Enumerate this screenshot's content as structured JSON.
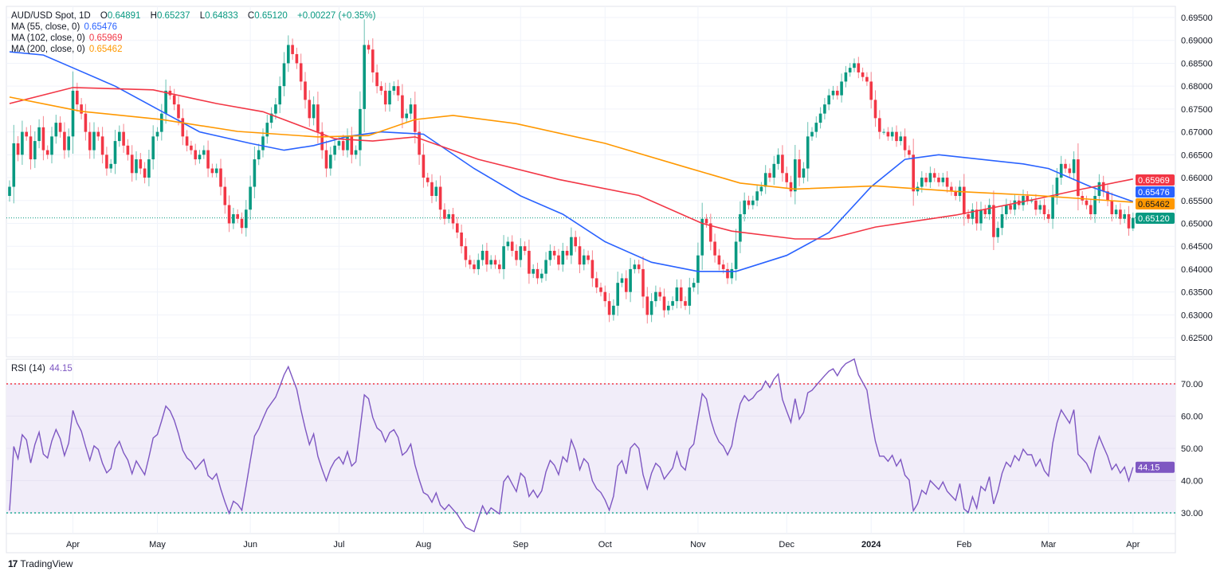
{
  "legend": {
    "symbol": "AUD/USD Spot, 1D",
    "o_label": "O",
    "o": "0.64891",
    "h_label": "H",
    "h": "0.65237",
    "l_label": "L",
    "l": "0.64833",
    "c_label": "C",
    "c": "0.65120",
    "change": "+0.00227 (+0.35%)",
    "ma55_label": "MA (55, close, 0)",
    "ma55": "0.65476",
    "ma102_label": "MA (102, close, 0)",
    "ma102": "0.65969",
    "ma200_label": "MA (200, close, 0)",
    "ma200": "0.65462",
    "rsi_label": "RSI (14)",
    "rsi": "44.15"
  },
  "colors": {
    "up": "#089981",
    "down": "#f23645",
    "ma55": "#2962ff",
    "ma102": "#f23645",
    "ma200": "#ff9800",
    "rsi": "#7e57c2",
    "rsi_band": "#f1edf9",
    "grid": "#f0f3fa",
    "text": "#131722"
  },
  "footer": {
    "brand": "TradingView"
  },
  "chart_data": [
    {
      "type": "candlestick",
      "title": "AUD/USD Spot, 1D",
      "ylim": [
        0.6225,
        0.6975
      ],
      "y_ticks": [
        "0.69500",
        "0.69000",
        "0.68500",
        "0.68000",
        "0.67500",
        "0.67000",
        "0.66500",
        "0.66000",
        "0.65500",
        "0.65000",
        "0.64500",
        "0.64000",
        "0.63500",
        "0.63000",
        "0.62500"
      ],
      "x_ticks": [
        {
          "label": "Apr",
          "bar": 15
        },
        {
          "label": "May",
          "bar": 35
        },
        {
          "label": "Jun",
          "bar": 57
        },
        {
          "label": "Jul",
          "bar": 78
        },
        {
          "label": "Aug",
          "bar": 98
        },
        {
          "label": "Sep",
          "bar": 121
        },
        {
          "label": "Oct",
          "bar": 141
        },
        {
          "label": "Nov",
          "bar": 163
        },
        {
          "label": "Dec",
          "bar": 184
        },
        {
          "label": "2024",
          "bar": 204,
          "bold": true
        },
        {
          "label": "Feb",
          "bar": 226
        },
        {
          "label": "Mar",
          "bar": 246
        },
        {
          "label": "Apr",
          "bar": 266
        }
      ],
      "last": {
        "open": 0.64891,
        "high": 0.65237,
        "low": 0.64833,
        "close": 0.6512
      },
      "closes": [
        0.658,
        0.6675,
        0.665,
        0.67,
        0.669,
        0.664,
        0.668,
        0.671,
        0.666,
        0.665,
        0.669,
        0.672,
        0.67,
        0.666,
        0.669,
        0.679,
        0.676,
        0.674,
        0.67,
        0.666,
        0.67,
        0.669,
        0.665,
        0.662,
        0.663,
        0.668,
        0.67,
        0.667,
        0.665,
        0.661,
        0.664,
        0.662,
        0.66,
        0.664,
        0.669,
        0.67,
        0.674,
        0.679,
        0.678,
        0.676,
        0.673,
        0.669,
        0.667,
        0.666,
        0.664,
        0.665,
        0.666,
        0.662,
        0.661,
        0.662,
        0.658,
        0.654,
        0.65,
        0.652,
        0.651,
        0.649,
        0.653,
        0.658,
        0.664,
        0.666,
        0.669,
        0.672,
        0.674,
        0.676,
        0.68,
        0.685,
        0.689,
        0.687,
        0.685,
        0.681,
        0.677,
        0.673,
        0.676,
        0.67,
        0.666,
        0.662,
        0.665,
        0.667,
        0.668,
        0.666,
        0.669,
        0.665,
        0.666,
        0.675,
        0.689,
        0.688,
        0.683,
        0.68,
        0.679,
        0.676,
        0.679,
        0.68,
        0.678,
        0.673,
        0.674,
        0.676,
        0.67,
        0.665,
        0.66,
        0.659,
        0.656,
        0.658,
        0.653,
        0.651,
        0.652,
        0.65,
        0.648,
        0.645,
        0.642,
        0.641,
        0.64,
        0.642,
        0.644,
        0.641,
        0.642,
        0.641,
        0.64,
        0.645,
        0.646,
        0.644,
        0.642,
        0.645,
        0.644,
        0.639,
        0.64,
        0.638,
        0.639,
        0.642,
        0.644,
        0.643,
        0.641,
        0.644,
        0.643,
        0.647,
        0.645,
        0.641,
        0.643,
        0.642,
        0.638,
        0.636,
        0.635,
        0.633,
        0.63,
        0.632,
        0.637,
        0.638,
        0.635,
        0.64,
        0.641,
        0.64,
        0.634,
        0.63,
        0.633,
        0.635,
        0.634,
        0.631,
        0.632,
        0.633,
        0.636,
        0.633,
        0.632,
        0.636,
        0.637,
        0.643,
        0.651,
        0.65,
        0.646,
        0.643,
        0.641,
        0.64,
        0.638,
        0.64,
        0.646,
        0.652,
        0.655,
        0.654,
        0.655,
        0.657,
        0.658,
        0.661,
        0.66,
        0.663,
        0.665,
        0.661,
        0.659,
        0.657,
        0.664,
        0.66,
        0.662,
        0.669,
        0.67,
        0.672,
        0.674,
        0.676,
        0.678,
        0.679,
        0.678,
        0.681,
        0.683,
        0.684,
        0.685,
        0.683,
        0.682,
        0.681,
        0.677,
        0.673,
        0.67,
        0.67,
        0.669,
        0.67,
        0.668,
        0.669,
        0.666,
        0.665,
        0.657,
        0.658,
        0.66,
        0.659,
        0.661,
        0.66,
        0.659,
        0.66,
        0.658,
        0.657,
        0.656,
        0.658,
        0.652,
        0.651,
        0.653,
        0.65,
        0.653,
        0.652,
        0.654,
        0.647,
        0.649,
        0.652,
        0.654,
        0.653,
        0.655,
        0.654,
        0.656,
        0.655,
        0.655,
        0.653,
        0.654,
        0.652,
        0.651,
        0.656,
        0.66,
        0.663,
        0.662,
        0.661,
        0.664,
        0.656,
        0.655,
        0.654,
        0.652,
        0.656,
        0.659,
        0.657,
        0.655,
        0.652,
        0.653,
        0.651,
        0.652,
        0.6489,
        0.6512
      ],
      "moving_averages": [
        {
          "name": "MA 55",
          "value": 0.65476,
          "points": [
            [
              0,
              0.6875
            ],
            [
              8,
              0.6868
            ],
            [
              15,
              0.684
            ],
            [
              25,
              0.68
            ],
            [
              35,
              0.675
            ],
            [
              45,
              0.67
            ],
            [
              57,
              0.6675
            ],
            [
              65,
              0.666
            ],
            [
              72,
              0.667
            ],
            [
              80,
              0.669
            ],
            [
              88,
              0.67
            ],
            [
              98,
              0.6695
            ],
            [
              110,
              0.662
            ],
            [
              121,
              0.656
            ],
            [
              131,
              0.652
            ],
            [
              141,
              0.646
            ],
            [
              152,
              0.6415
            ],
            [
              163,
              0.6395
            ],
            [
              172,
              0.6395
            ],
            [
              184,
              0.643
            ],
            [
              194,
              0.648
            ],
            [
              204,
              0.658
            ],
            [
              212,
              0.664
            ],
            [
              220,
              0.665
            ],
            [
              230,
              0.664
            ],
            [
              240,
              0.663
            ],
            [
              246,
              0.662
            ],
            [
              256,
              0.658
            ],
            [
              266,
              0.65476
            ]
          ]
        },
        {
          "name": "MA 102",
          "value": 0.65969,
          "points": [
            [
              0,
              0.6762
            ],
            [
              15,
              0.6797
            ],
            [
              34,
              0.6792
            ],
            [
              49,
              0.6762
            ],
            [
              60,
              0.6744
            ],
            [
              77,
              0.6685
            ],
            [
              86,
              0.668
            ],
            [
              96,
              0.6689
            ],
            [
              111,
              0.664
            ],
            [
              130,
              0.6596
            ],
            [
              149,
              0.6561
            ],
            [
              164,
              0.65
            ],
            [
              171,
              0.6483
            ],
            [
              186,
              0.6466
            ],
            [
              194,
              0.6466
            ],
            [
              205,
              0.6492
            ],
            [
              224,
              0.6518
            ],
            [
              243,
              0.6553
            ],
            [
              254,
              0.6575
            ],
            [
              266,
              0.65969
            ]
          ]
        },
        {
          "name": "MA 200",
          "value": 0.65462,
          "points": [
            [
              0,
              0.6776
            ],
            [
              17,
              0.6745
            ],
            [
              36,
              0.6727
            ],
            [
              54,
              0.6701
            ],
            [
              73,
              0.6689
            ],
            [
              85,
              0.6692
            ],
            [
              96,
              0.6727
            ],
            [
              105,
              0.6736
            ],
            [
              120,
              0.6718
            ],
            [
              141,
              0.6675
            ],
            [
              160,
              0.6623
            ],
            [
              173,
              0.6588
            ],
            [
              186,
              0.6575
            ],
            [
              205,
              0.6582
            ],
            [
              224,
              0.657
            ],
            [
              243,
              0.6561
            ],
            [
              266,
              0.65462
            ]
          ]
        }
      ]
    },
    {
      "type": "line",
      "title": "RSI (14)",
      "ylim": [
        25,
        75
      ],
      "y_ticks": [
        "70.00",
        "60.00",
        "50.00",
        "40.00",
        "30.00"
      ],
      "levels": [
        70,
        30
      ],
      "last": 44.15
    }
  ]
}
